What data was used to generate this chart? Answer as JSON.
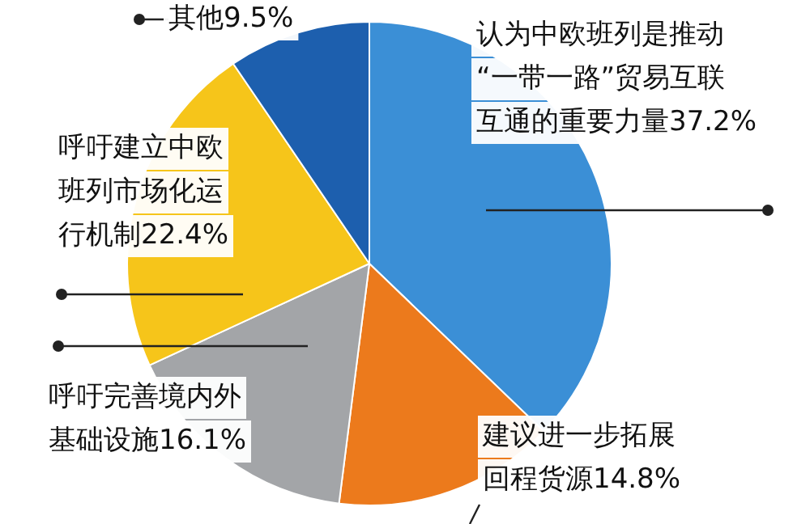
{
  "chart_data": {
    "type": "pie",
    "categories": [
      "认为中欧班列是推动“一带一路”贸易互联互通的重要力量",
      "建议进一步拓展回程货源",
      "呼吁完善境内外基础设施",
      "呼吁建立中欧班列市场化运行机制",
      "其他"
    ],
    "values": [
      37.2,
      14.8,
      16.1,
      22.4,
      9.5
    ],
    "value_labels": [
      "37.2%",
      "14.8%",
      "16.1%",
      "22.4%",
      "9.5%"
    ],
    "colors": [
      "#3b8fd6",
      "#ec7a1c",
      "#a3a5a8",
      "#f6c51a",
      "#1d5fae"
    ],
    "legend": false
  }
}
